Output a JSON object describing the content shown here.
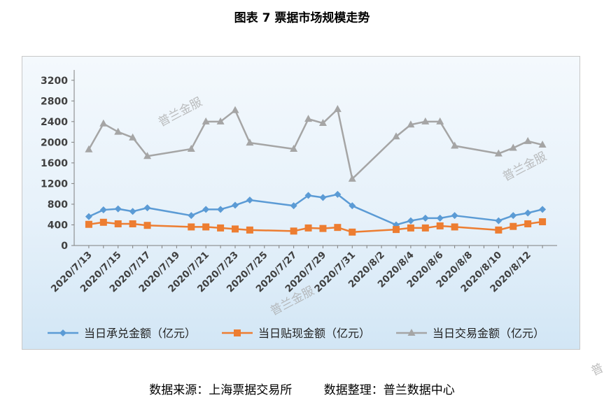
{
  "title": "图表 7  票据市场规模走势",
  "source": "数据来源：上海票据交易所",
  "arranged_by": "数据整理：普兰数据中心",
  "watermark": "普兰金服",
  "watermark_corner": "普",
  "chart_data": {
    "type": "line",
    "title": "图表 7  票据市场规模走势",
    "xlabel": "",
    "ylabel": "",
    "ylim": [
      0,
      3400
    ],
    "yticks": [
      0,
      400,
      800,
      1200,
      1600,
      2000,
      2400,
      2800,
      3200
    ],
    "x_tick_labels": [
      "2020/7/13",
      "2020/7/15",
      "2020/7/17",
      "2020/7/19",
      "2020/7/21",
      "2020/7/23",
      "2020/7/25",
      "2020/7/27",
      "2020/7/29",
      "2020/7/31",
      "2020/8/2",
      "2020/8/4",
      "2020/8/6",
      "2020/8/8",
      "2020/8/10",
      "2020/8/12"
    ],
    "x": [
      "2020/7/13",
      "2020/7/14",
      "2020/7/15",
      "2020/7/16",
      "2020/7/17",
      "2020/7/20",
      "2020/7/21",
      "2020/7/22",
      "2020/7/23",
      "2020/7/24",
      "2020/7/27",
      "2020/7/28",
      "2020/7/29",
      "2020/7/30",
      "2020/7/31",
      "2020/8/3",
      "2020/8/4",
      "2020/8/5",
      "2020/8/6",
      "2020/8/7",
      "2020/8/10",
      "2020/8/11",
      "2020/8/12",
      "2020/8/13"
    ],
    "series": [
      {
        "name": "当日承兑金额（亿元）",
        "color": "#5b9bd5",
        "marker": "diamond",
        "values": [
          560,
          690,
          710,
          660,
          730,
          580,
          700,
          700,
          780,
          880,
          770,
          970,
          930,
          990,
          770,
          400,
          480,
          530,
          530,
          580,
          480,
          580,
          630,
          700
        ]
      },
      {
        "name": "当日贴现金额（亿元）",
        "color": "#ed7d31",
        "marker": "square",
        "values": [
          410,
          450,
          420,
          420,
          390,
          360,
          360,
          340,
          320,
          300,
          280,
          340,
          330,
          350,
          260,
          310,
          340,
          340,
          380,
          360,
          300,
          370,
          420,
          460
        ]
      },
      {
        "name": "当日交易金额（亿元）",
        "color": "#a5a5a5",
        "marker": "triangle",
        "values": [
          1860,
          2360,
          2200,
          2090,
          1730,
          1870,
          2400,
          2400,
          2620,
          1990,
          1870,
          2450,
          2370,
          2640,
          1290,
          2110,
          2340,
          2400,
          2400,
          1930,
          1780,
          1890,
          2020,
          1950
        ]
      }
    ],
    "legend": "bottom",
    "grid": false
  }
}
